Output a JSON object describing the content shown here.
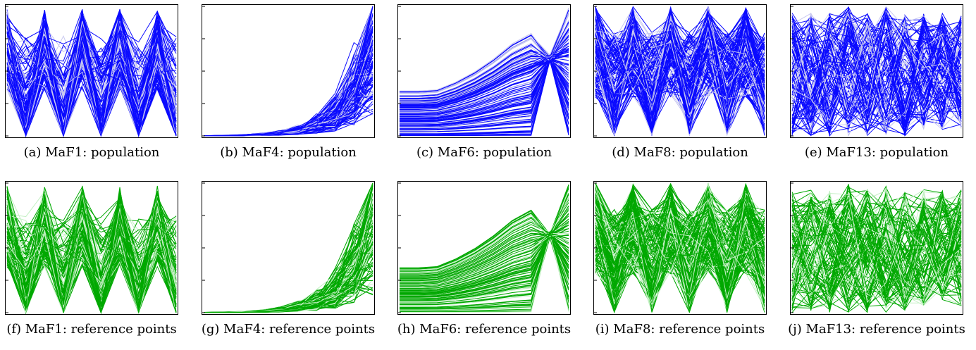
{
  "figure": {
    "colors": {
      "population": "#0a0aff",
      "population_light": "#c8c8f0",
      "reference": "#00a800",
      "reference_light": "#c4f0c4"
    }
  },
  "chart_data": [
    {
      "id": "a",
      "type": "line",
      "problem": "MaF1",
      "set": "population",
      "caption": "(a) MaF1: population",
      "pattern": "zigzag",
      "n_objectives": 10,
      "ylim": [
        0,
        1
      ]
    },
    {
      "id": "b",
      "type": "line",
      "problem": "MaF4",
      "set": "population",
      "caption": "(b) MaF4: population",
      "pattern": "exponential",
      "n_objectives": 10,
      "ylim": [
        0,
        1
      ]
    },
    {
      "id": "c",
      "type": "line",
      "problem": "MaF6",
      "set": "population",
      "caption": "(c) MaF6: population",
      "pattern": "degenerate",
      "n_objectives": 10,
      "ylim": [
        0,
        1
      ]
    },
    {
      "id": "d",
      "type": "line",
      "problem": "MaF8",
      "set": "population",
      "caption": "(d) MaF8: population",
      "pattern": "dense",
      "n_objectives": 10,
      "ylim": [
        0,
        1
      ]
    },
    {
      "id": "e",
      "type": "line",
      "problem": "MaF13",
      "set": "population",
      "caption": "(e) MaF13: population",
      "pattern": "irregular",
      "n_objectives": 10,
      "ylim": [
        0,
        1
      ]
    },
    {
      "id": "f",
      "type": "line",
      "problem": "MaF1",
      "set": "reference",
      "caption": "(f) MaF1: reference points",
      "pattern": "zigzag",
      "n_objectives": 10,
      "ylim": [
        0,
        1
      ]
    },
    {
      "id": "g",
      "type": "line",
      "problem": "MaF4",
      "set": "reference",
      "caption": "(g) MaF4: reference points",
      "pattern": "exponential",
      "n_objectives": 10,
      "ylim": [
        0,
        1
      ]
    },
    {
      "id": "h",
      "type": "line",
      "problem": "MaF6",
      "set": "reference",
      "caption": "(h) MaF6: reference points",
      "pattern": "degenerate",
      "n_objectives": 10,
      "ylim": [
        0,
        1
      ]
    },
    {
      "id": "i",
      "type": "line",
      "problem": "MaF8",
      "set": "reference",
      "caption": "(i) MaF8: reference points",
      "pattern": "dense",
      "n_objectives": 10,
      "ylim": [
        0,
        1
      ]
    },
    {
      "id": "j",
      "type": "line",
      "problem": "MaF13",
      "set": "reference",
      "caption": "(j) MaF13: reference points",
      "pattern": "irregular",
      "n_objectives": 10,
      "ylim": [
        0,
        1
      ]
    }
  ]
}
